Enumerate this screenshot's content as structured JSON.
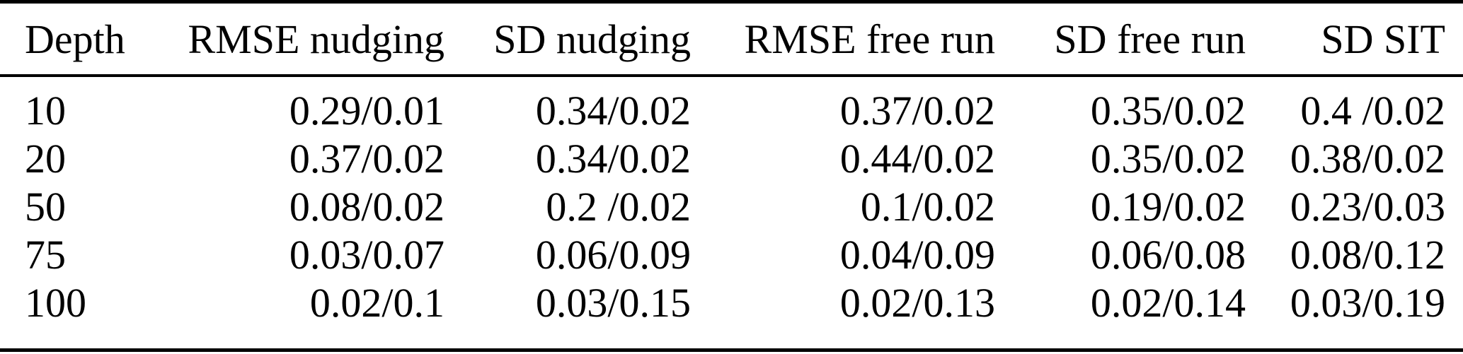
{
  "table": {
    "columns": [
      {
        "key": "depth",
        "label": "Depth",
        "align": "left"
      },
      {
        "key": "rmse_nudging",
        "label": "RMSE nudging",
        "align": "right"
      },
      {
        "key": "sd_nudging",
        "label": "SD nudging",
        "align": "right"
      },
      {
        "key": "rmse_free_run",
        "label": "RMSE free run",
        "align": "right"
      },
      {
        "key": "sd_free_run",
        "label": "SD free run",
        "align": "right"
      },
      {
        "key": "sd_sit",
        "label": "SD SIT",
        "align": "right"
      }
    ],
    "rows": [
      [
        "10",
        "0.29/0.01",
        "0.34/0.02",
        "0.37/0.02",
        "0.35/0.02",
        "0.4 /0.02"
      ],
      [
        "20",
        "0.37/0.02",
        "0.34/0.02",
        "0.44/0.02",
        "0.35/0.02",
        "0.38/0.02"
      ],
      [
        "50",
        "0.08/0.02",
        "0.2 /0.02",
        "0.1/0.02",
        "0.19/0.02",
        "0.23/0.03"
      ],
      [
        "75",
        "0.03/0.07",
        "0.06/0.09",
        "0.04/0.09",
        "0.06/0.08",
        "0.08/0.12"
      ],
      [
        "100",
        "0.02/0.1",
        "0.03/0.15",
        "0.02/0.13",
        "0.02/0.14",
        "0.03/0.19"
      ]
    ]
  },
  "chart_data": {
    "type": "table",
    "columns": [
      "Depth",
      "RMSE nudging",
      "SD nudging",
      "RMSE free run",
      "SD free run",
      "SD SIT"
    ],
    "rows": [
      [
        "10",
        "0.29/0.01",
        "0.34/0.02",
        "0.37/0.02",
        "0.35/0.02",
        "0.4 /0.02"
      ],
      [
        "20",
        "0.37/0.02",
        "0.34/0.02",
        "0.44/0.02",
        "0.35/0.02",
        "0.38/0.02"
      ],
      [
        "50",
        "0.08/0.02",
        "0.2 /0.02",
        "0.1/0.02",
        "0.19/0.02",
        "0.23/0.03"
      ],
      [
        "75",
        "0.03/0.07",
        "0.06/0.09",
        "0.04/0.09",
        "0.06/0.08",
        "0.08/0.12"
      ],
      [
        "100",
        "0.02/0.1",
        "0.03/0.15",
        "0.02/0.13",
        "0.02/0.14",
        "0.03/0.19"
      ]
    ]
  },
  "colors": {
    "text": "#000000",
    "background": "#ffffff",
    "rule": "#000000"
  }
}
